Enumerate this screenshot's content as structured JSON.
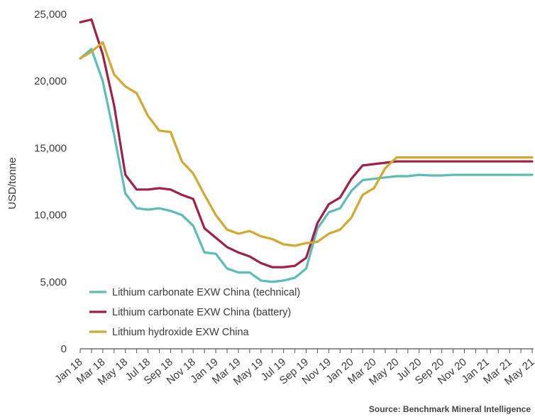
{
  "source_note": "Source: Benchmark Mineral Intelligence",
  "chart_data": {
    "type": "line",
    "title": "",
    "xlabel": "",
    "ylabel": "USD/tonne",
    "ylim": [
      0,
      25000
    ],
    "yticks": [
      0,
      5000,
      10000,
      15000,
      20000,
      25000
    ],
    "ytick_labels": [
      "0",
      "5,000",
      "10,000",
      "15,000",
      "20,000",
      "25,000"
    ],
    "grid": false,
    "legend_position": "bottom-left",
    "x": [
      "Jan 18",
      "Feb 18",
      "Mar 18",
      "Apr 18",
      "May 18",
      "Jun 18",
      "Jul 18",
      "Aug 18",
      "Sep 18",
      "Oct 18",
      "Nov 18",
      "Dec 18",
      "Jan 19",
      "Feb 19",
      "Mar 19",
      "Apr 19",
      "May 19",
      "Jun 19",
      "Jul 19",
      "Aug 19",
      "Sep 19",
      "Oct 19",
      "Nov 19",
      "Dec 19",
      "Jan 20",
      "Feb 20",
      "Mar 20",
      "Apr 20",
      "May 20",
      "Jun 20",
      "Jul 20",
      "Aug 20",
      "Sep 20",
      "Oct 20",
      "Nov 20",
      "Dec 20",
      "Jan 21",
      "Feb 21",
      "Mar 21",
      "Apr 21",
      "May 21"
    ],
    "xtick_labels": [
      "Jan 18",
      "Mar 18",
      "May 18",
      "Jul 18",
      "Sep 18",
      "Nov 18",
      "Jan 19",
      "Mar 19",
      "May 19",
      "Jul 19",
      "Sep 19",
      "Nov 19",
      "Jan 20",
      "Mar 20",
      "May 20",
      "Jul 20",
      "Sep 20",
      "Nov 20",
      "Jan 21",
      "Mar 21",
      "May 21"
    ],
    "series": [
      {
        "name": "Lithium carbonate EXW China (technical)",
        "color": "#5bbdb9",
        "values": [
          21700,
          22400,
          20000,
          16000,
          11600,
          10500,
          10400,
          10500,
          10300,
          10000,
          9200,
          7200,
          7100,
          6000,
          5700,
          5700,
          5100,
          5000,
          5100,
          5300,
          6000,
          9000,
          10200,
          10500,
          11800,
          12600,
          12700,
          12800,
          12900,
          12900,
          13000,
          12950,
          12950,
          13000,
          13000,
          13000,
          13000,
          13000,
          13000,
          13000,
          13000
        ]
      },
      {
        "name": "Lithium carbonate EXW China (battery)",
        "color": "#a31f45",
        "values": [
          24400,
          24600,
          22000,
          18200,
          13000,
          11900,
          11900,
          12000,
          11900,
          11500,
          11200,
          9000,
          8300,
          7600,
          7200,
          6900,
          6400,
          6100,
          6100,
          6200,
          6800,
          9400,
          10800,
          11300,
          12700,
          13700,
          13800,
          13900,
          14000,
          14000,
          14000,
          14000,
          14000,
          14000,
          14000,
          14000,
          14000,
          14000,
          14000,
          14000,
          14000
        ]
      },
      {
        "name": "Lithium hydroxide EXW China",
        "color": "#d4a82c",
        "values": [
          21700,
          22200,
          22900,
          20500,
          19600,
          19100,
          17400,
          16300,
          16200,
          14000,
          13100,
          11500,
          10000,
          8900,
          8600,
          8800,
          8400,
          8200,
          7800,
          7700,
          7900,
          8000,
          8600,
          8900,
          9800,
          11500,
          12000,
          13500,
          14300,
          14300,
          14300,
          14300,
          14300,
          14300,
          14300,
          14300,
          14300,
          14300,
          14300,
          14300,
          14300
        ]
      }
    ]
  }
}
